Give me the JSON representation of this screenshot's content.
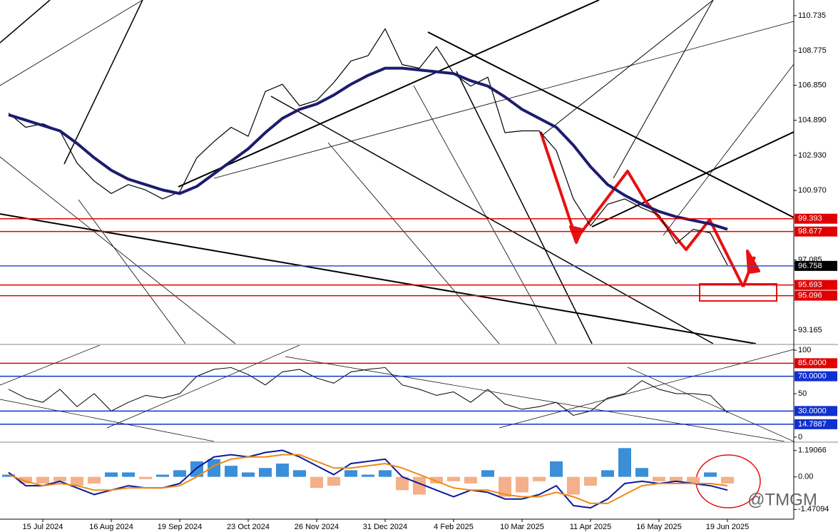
{
  "chart_data": [
    {
      "type": "line",
      "ylim": [
        92.41,
        111.61
      ],
      "yticks": [
        110.735,
        108.775,
        {
          "value": 106.85,
          "label": "106.850"
        },
        {
          "value": 104.89,
          "label": "104.890"
        },
        {
          "value": 102.93,
          "label": "102.930"
        },
        {
          "value": 100.97,
          "label": "100.970"
        },
        97.085,
        93.165
      ],
      "levels": [
        {
          "value": 99.393,
          "color": "#e00000",
          "box": "#e00000"
        },
        {
          "value": 98.677,
          "color": "#e00000",
          "box": "#e00000"
        },
        {
          "value": 96.758,
          "color": "#3050d0",
          "box": "#000000"
        },
        {
          "value": 95.693,
          "color": "#e00000",
          "box": "#e00000"
        },
        {
          "value": 95.096,
          "color": "#e00000",
          "box": "#e00000"
        }
      ],
      "series": [
        {
          "color": "#000000",
          "width": 1.2,
          "values": [
            105.3,
            104.5,
            104.7,
            104.3,
            102.5,
            101.5,
            100.8,
            101.3,
            101.0,
            100.5,
            100.9,
            102.8,
            103.7,
            104.5,
            104.0,
            106.5,
            106.9,
            105.7,
            106.0,
            107.0,
            108.2,
            108.5,
            110.0,
            108.0,
            107.8,
            109.0,
            107.5,
            106.8,
            107.3,
            104.2,
            104.3,
            104.3,
            103.2,
            100.5,
            99.0,
            100.2,
            100.5,
            100.0,
            99.6,
            98.0,
            98.8,
            98.6,
            96.8
          ]
        },
        {
          "color": "#1c1c6e",
          "width": 4,
          "values": [
            105.2,
            104.9,
            104.6,
            104.3,
            103.6,
            102.8,
            102.1,
            101.6,
            101.3,
            101.0,
            100.8,
            101.2,
            101.9,
            102.6,
            103.3,
            104.2,
            105.0,
            105.5,
            105.8,
            106.3,
            106.9,
            107.4,
            107.8,
            107.8,
            107.7,
            107.6,
            107.5,
            107.1,
            106.8,
            106.2,
            105.5,
            105.0,
            104.5,
            103.5,
            102.3,
            101.3,
            100.7,
            100.2,
            99.8,
            99.5,
            99.3,
            99.1,
            98.8
          ]
        }
      ]
    },
    {
      "type": "line",
      "ylim": [
        -5,
        105.8
      ],
      "yticks": [
        100,
        50,
        0
      ],
      "levels": [
        {
          "value": 85,
          "label": "85.0000",
          "color": "#e00000",
          "box": "#e00000"
        },
        {
          "value": 70,
          "label": "70.0000",
          "color": "#1030d0",
          "box": "#1030d0"
        },
        {
          "value": 30,
          "label": "30.0000",
          "color": "#1030d0",
          "box": "#1030d0"
        },
        {
          "value": 14.7887,
          "label": "14.7887",
          "color": "#1030d0",
          "box": "#1030d0"
        }
      ],
      "series": [
        {
          "color": "#000000",
          "width": 1,
          "values": [
            55,
            45,
            40,
            55,
            35,
            50,
            30,
            40,
            48,
            45,
            50,
            70,
            78,
            80,
            72,
            60,
            75,
            78,
            68,
            62,
            75,
            78,
            80,
            60,
            55,
            48,
            52,
            40,
            55,
            38,
            32,
            35,
            40,
            25,
            30,
            45,
            50,
            65,
            55,
            50,
            50,
            48,
            28
          ]
        }
      ]
    },
    {
      "type": "bar",
      "ylim": [
        -1.912,
        1.536
      ],
      "yticks": [
        1.19066,
        {
          "value": 0,
          "label": "0.00"
        },
        -1.47094
      ],
      "categories": [
        null,
        null,
        "15 Jul 2024",
        null,
        null,
        null,
        "16 Aug 2024",
        null,
        null,
        null,
        "19 Sep 2024",
        null,
        null,
        null,
        "23 Oct 2024",
        null,
        null,
        null,
        "26 Nov 2024",
        null,
        null,
        null,
        "31 Dec 2024",
        null,
        null,
        null,
        "4 Feb 2025",
        null,
        null,
        null,
        "10 Mar 2025",
        null,
        null,
        null,
        "11 Apr 2025",
        null,
        null,
        null,
        "16 May 2025",
        null,
        null,
        null,
        "19 Jun 2025"
      ],
      "series": [
        {
          "type": "bar",
          "color": "#3a8fd8",
          "negative_color": "#f4b08a",
          "values": [
            0.1,
            -0.3,
            -0.3,
            -0.2,
            -0.4,
            -0.3,
            0.2,
            0.2,
            -0.1,
            0.1,
            0.3,
            0.7,
            0.8,
            0.5,
            0.2,
            0.4,
            0.6,
            0.3,
            -0.5,
            -0.4,
            0.3,
            0.1,
            0.3,
            -0.6,
            -0.8,
            -0.3,
            -0.2,
            -0.3,
            0.3,
            -0.9,
            -0.7,
            -0.2,
            0.7,
            -0.8,
            -0.4,
            0.3,
            1.3,
            0.4,
            -0.2,
            -0.2,
            -0.3,
            0.2,
            -0.3
          ]
        },
        {
          "type": "line",
          "color": "#0a1a9a",
          "width": 2,
          "values": [
            0.2,
            -0.4,
            -0.4,
            -0.2,
            -0.5,
            -0.8,
            -0.6,
            -0.4,
            -0.5,
            -0.5,
            -0.3,
            0.4,
            0.9,
            1.0,
            0.9,
            1.1,
            1.2,
            0.9,
            0.5,
            0.1,
            0.6,
            0.7,
            0.8,
            0.0,
            -0.3,
            -0.6,
            -0.9,
            -0.6,
            -0.7,
            -1.0,
            -1.0,
            -0.8,
            -0.4,
            -1.3,
            -1.4,
            -1.0,
            -0.3,
            -0.2,
            -0.3,
            -0.2,
            -0.3,
            -0.4,
            -0.6
          ]
        },
        {
          "type": "line",
          "color": "#f08a10",
          "width": 2,
          "values": [
            0.1,
            -0.2,
            -0.4,
            -0.3,
            -0.4,
            -0.6,
            -0.6,
            -0.5,
            -0.5,
            -0.5,
            -0.4,
            0.0,
            0.5,
            0.8,
            0.9,
            0.9,
            1.0,
            1.0,
            0.7,
            0.4,
            0.4,
            0.5,
            0.6,
            0.4,
            0.1,
            -0.2,
            -0.5,
            -0.6,
            -0.6,
            -0.8,
            -0.9,
            -0.9,
            -0.7,
            -0.9,
            -1.2,
            -1.2,
            -0.8,
            -0.4,
            -0.3,
            -0.3,
            -0.3,
            -0.3,
            -0.4
          ]
        }
      ]
    }
  ],
  "watermark": "@TMGM"
}
